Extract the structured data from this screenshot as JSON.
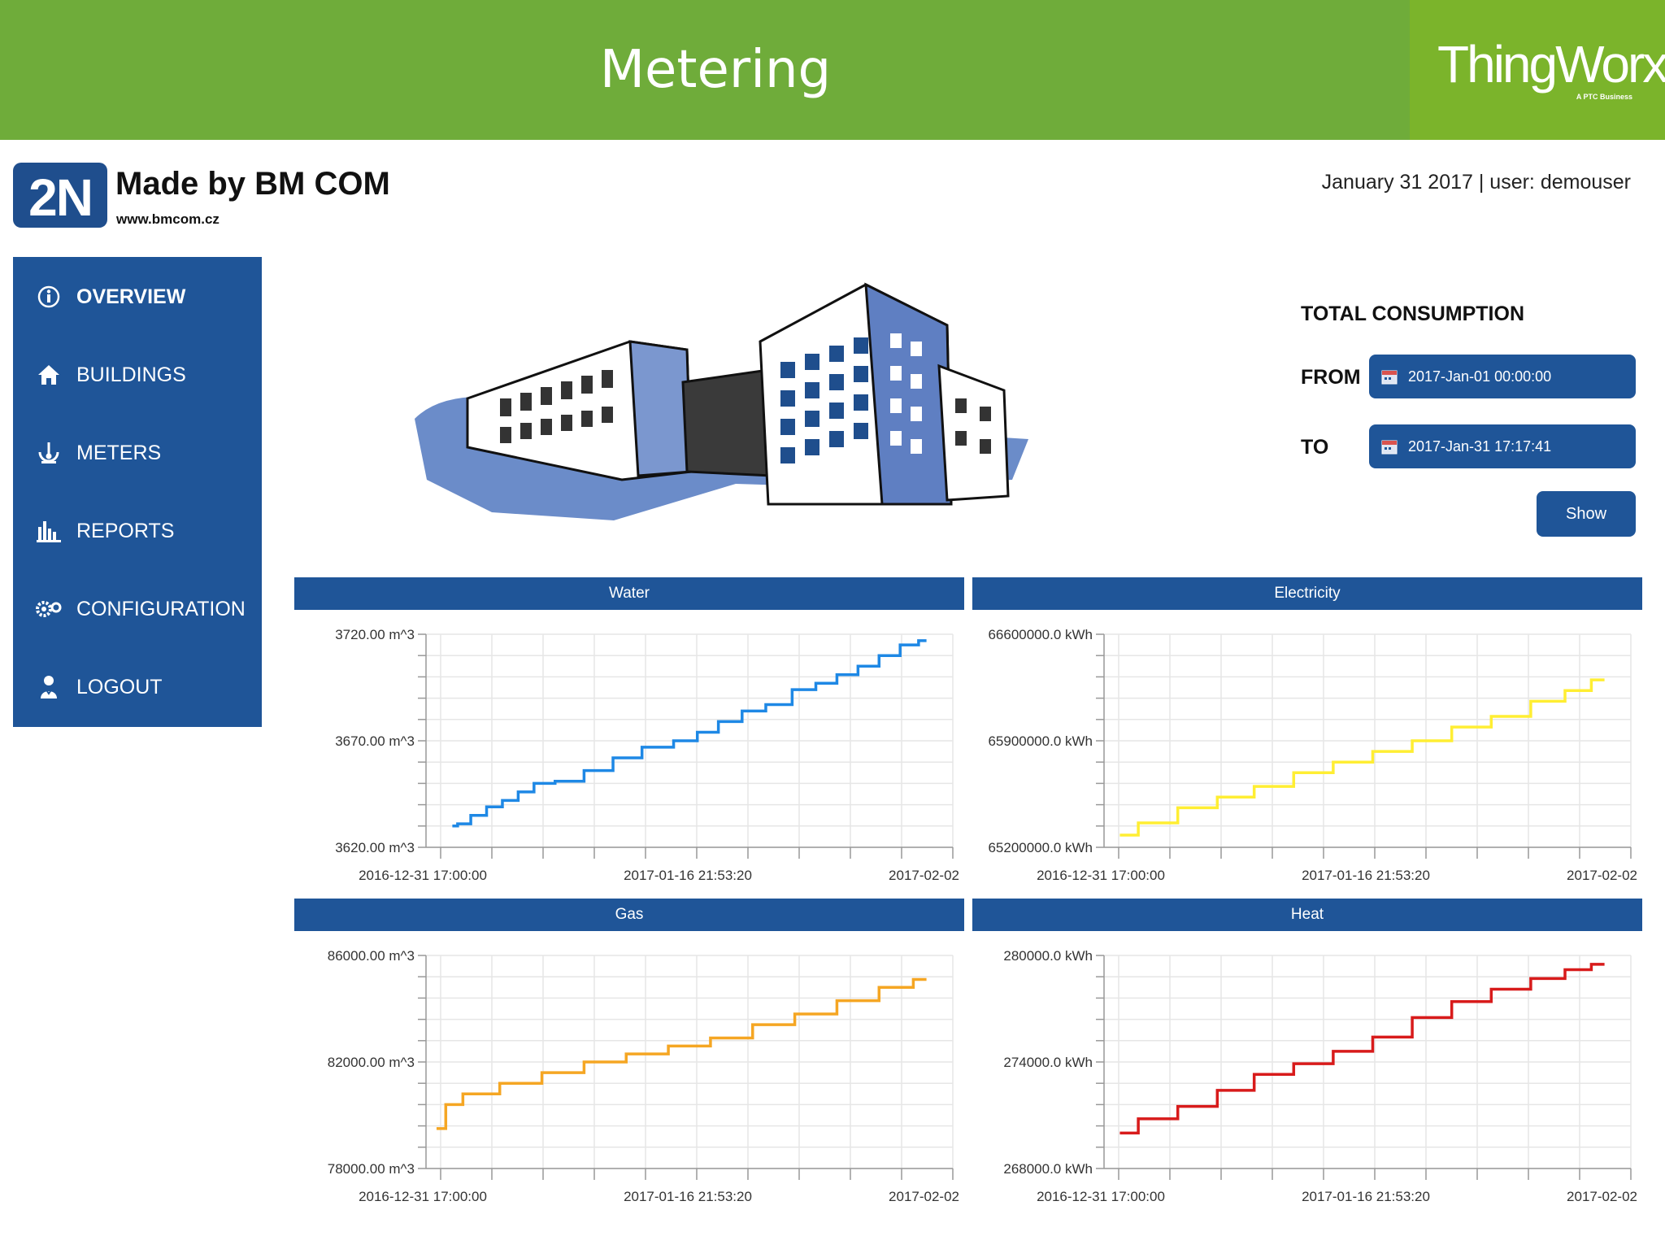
{
  "header": {
    "title": "Metering",
    "logo_text": "ThingWorx",
    "logo_sub": "A PTC Business"
  },
  "brand": {
    "mark": "2N",
    "title": "Made by BM COM",
    "url": "www.bmcom.cz"
  },
  "user_line": "January 31 2017 | user: demouser",
  "sidebar": {
    "items": [
      {
        "label": "OVERVIEW",
        "icon": "info-icon",
        "active": true
      },
      {
        "label": "BUILDINGS",
        "icon": "home-icon",
        "active": false
      },
      {
        "label": "METERS",
        "icon": "meter-icon",
        "active": false
      },
      {
        "label": "REPORTS",
        "icon": "bar-chart-icon",
        "active": false
      },
      {
        "label": "CONFIGURATION",
        "icon": "gears-icon",
        "active": false
      },
      {
        "label": "LOGOUT",
        "icon": "user-icon",
        "active": false
      }
    ]
  },
  "consumption": {
    "title": "TOTAL CONSUMPTION",
    "from_label": "FROM",
    "from_value": "2017-Jan-01 00:00:00",
    "to_label": "TO",
    "to_value": "2017-Jan-31 17:17:41",
    "show_label": "Show"
  },
  "colors": {
    "header_green": "#6fac3a",
    "nav_blue": "#1f5598",
    "water": "#1e88e5",
    "electricity": "#ffee33",
    "gas": "#f5a623",
    "heat": "#d81b1b"
  },
  "chart_data": [
    {
      "type": "line",
      "title": "Water",
      "x_ticks": [
        "2016-12-31 17:00:00",
        "2017-01-16 21:53:20",
        "2017-02-02"
      ],
      "y_ticks": [
        "3720.00 m^3",
        "3670.00 m^3",
        "3620.00 m^3"
      ],
      "ylim": [
        3620,
        3720
      ],
      "color": "#1e88e5",
      "series": [
        {
          "x": [
            0.05,
            0.07,
            0.1,
            0.13,
            0.16,
            0.19,
            0.22,
            0.27,
            0.33,
            0.38,
            0.44,
            0.5,
            0.53,
            0.58,
            0.62,
            0.67,
            0.72,
            0.76,
            0.8,
            0.84,
            0.88,
            0.92,
            0.95
          ],
          "values": [
            3630,
            3631,
            3635,
            3639,
            3642,
            3646,
            3650,
            3651,
            3656,
            3662,
            3667,
            3670,
            3674,
            3679,
            3684,
            3687,
            3694,
            3697,
            3701,
            3705,
            3710,
            3715,
            3717
          ]
        }
      ]
    },
    {
      "type": "line",
      "title": "Electricity",
      "x_ticks": [
        "2016-12-31 17:00:00",
        "2017-01-16 21:53:20",
        "2017-02-02"
      ],
      "y_ticks": [
        "66600000.0 kWh",
        "65900000.0 kWh",
        "65200000.0 kWh"
      ],
      "ylim": [
        65200000,
        66600000
      ],
      "color": "#ffee33",
      "series": [
        {
          "x": [
            0.03,
            0.1,
            0.18,
            0.25,
            0.32,
            0.4,
            0.47,
            0.55,
            0.62,
            0.7,
            0.77,
            0.85,
            0.9,
            0.95
          ],
          "values": [
            65280000,
            65360000,
            65460000,
            65530000,
            65600000,
            65690000,
            65760000,
            65830000,
            65900000,
            65990000,
            66060000,
            66160000,
            66230000,
            66300000
          ]
        }
      ]
    },
    {
      "type": "line",
      "title": "Gas",
      "x_ticks": [
        "2016-12-31 17:00:00",
        "2017-01-16 21:53:20",
        "2017-02-02"
      ],
      "y_ticks": [
        "86000.00 m^3",
        "82000.00 m^3",
        "78000.00 m^3"
      ],
      "ylim": [
        78000,
        86000
      ],
      "color": "#f5a623",
      "series": [
        {
          "x": [
            0.02,
            0.035,
            0.04,
            0.1,
            0.18,
            0.26,
            0.34,
            0.42,
            0.5,
            0.58,
            0.66,
            0.74,
            0.82,
            0.9,
            0.95
          ],
          "values": [
            79500,
            79500,
            80400,
            80800,
            81200,
            81600,
            82000,
            82300,
            82600,
            82900,
            83400,
            83800,
            84300,
            84800,
            85100
          ]
        }
      ]
    },
    {
      "type": "line",
      "title": "Heat",
      "x_ticks": [
        "2016-12-31 17:00:00",
        "2017-01-16 21:53:20",
        "2017-02-02"
      ],
      "y_ticks": [
        "280000.0 kWh",
        "274000.0 kWh",
        "268000.0 kWh"
      ],
      "ylim": [
        268000,
        280000
      ],
      "color": "#d81b1b",
      "series": [
        {
          "x": [
            0.03,
            0.1,
            0.18,
            0.25,
            0.32,
            0.4,
            0.47,
            0.55,
            0.62,
            0.7,
            0.77,
            0.85,
            0.9,
            0.95
          ],
          "values": [
            270000,
            270800,
            271500,
            272400,
            273300,
            273900,
            274600,
            275400,
            276500,
            277400,
            278100,
            278700,
            279200,
            279500
          ]
        }
      ]
    }
  ]
}
